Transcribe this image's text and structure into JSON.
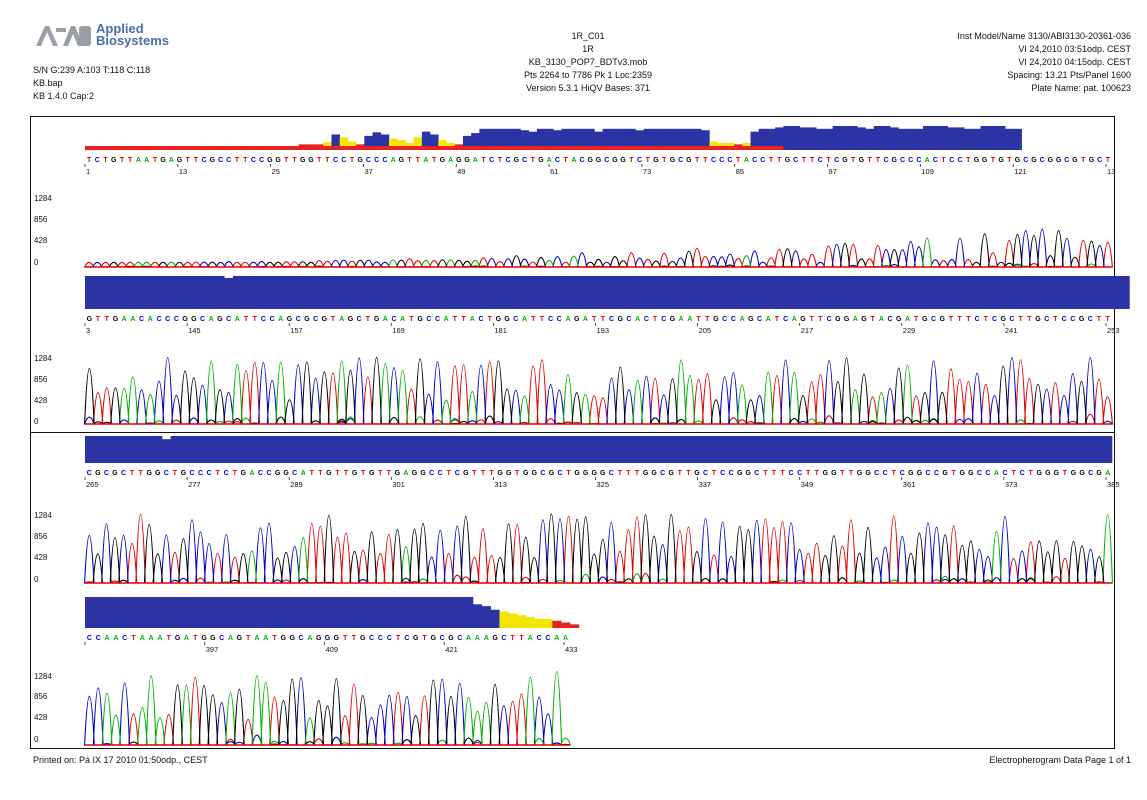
{
  "header": {
    "brand_line1": "Applied",
    "brand_line2": "Biosystems",
    "sample_line": "S/N G:239 A:103 T:118 C:118",
    "file_line": "KB.bap",
    "basecaller_line": "KB 1.4.0    Cap:2",
    "well": "1R_C01",
    "sample_name": "1R",
    "run_module": "KB_3130_POP7_BDTv3.mob",
    "points_line": "Pts 2264 to 7786 Pk 1 Loc:2359",
    "version_line": "Version 5.3.1    HiQV Bases: 371",
    "instrument_line": "Inst Model/Name 3130/ABI3130-20361-036",
    "date_line1": "VI 24,2010 03:51odp. CEST",
    "date_line2": "VI 24,2010 04:15odp. CEST",
    "spacing_line": "Spacing: 13.21  Pts/Panel 1600",
    "plate_line": "Plate Name: pat. 100623"
  },
  "footer": {
    "printed_on": "Printed on: Pá IX 17 2010 01:50odp., CEST",
    "page_label": "Electropherogram Data  Page 1 of 1"
  },
  "colors": {
    "A": "#00b000",
    "C": "#0000c8",
    "G": "#000000",
    "T": "#e00000",
    "qv_bar": "#2c33a5",
    "qv_mid": "#f2e600",
    "qv_low": "#e52323"
  },
  "chart_data": [
    {
      "type": "line",
      "panel": 1,
      "y_ticks": [
        "1284",
        "856",
        "428",
        "0"
      ],
      "tick_labels": [
        "1",
        "13",
        "25",
        "37",
        "49",
        "61",
        "73",
        "85",
        "97",
        "109",
        "121",
        "13"
      ],
      "seq": "TCTGTTAATGAGTTCGCCTTCCGGTTGGTTCCTGCCCAGTTATGAGGATCTCGCTGACTACGGCGGTCTGTGCGTTCCCTACCTTGCTTCTCGTGTTCGCCCACTCCTGGTGTGCGCGGCGTGCT",
      "qv": [
        2,
        2,
        2,
        2,
        2,
        2,
        2,
        2,
        3,
        3,
        3,
        3,
        5,
        5,
        5,
        5,
        5,
        5,
        5,
        5,
        5,
        5,
        5,
        5,
        5,
        5,
        8,
        8,
        8,
        11,
        22,
        18,
        12,
        8,
        20,
        25,
        22,
        16,
        14,
        10,
        18,
        26,
        22,
        14,
        10,
        8,
        20,
        24,
        30,
        30,
        30,
        30,
        30,
        28,
        26,
        30,
        30,
        28,
        30,
        30,
        30,
        30,
        26,
        30,
        30,
        30,
        30,
        28,
        30,
        30,
        30,
        30,
        30,
        30,
        30,
        28,
        12,
        10,
        10,
        8,
        10,
        26,
        30,
        30,
        32,
        34,
        34,
        32,
        32,
        30,
        30,
        34,
        34,
        34,
        32,
        30,
        34,
        34,
        32,
        30,
        30,
        30,
        34,
        34,
        34,
        32,
        32,
        30,
        30,
        34,
        34,
        34,
        30,
        30
      ]
    },
    {
      "type": "line",
      "panel": 2,
      "y_ticks": [
        "1284",
        "856",
        "428",
        "0"
      ],
      "tick_labels": [
        "3",
        "145",
        "157",
        "169",
        "181",
        "193",
        "205",
        "217",
        "229",
        "241",
        "253"
      ],
      "seq": "GTTGAACACCCGGCAGCATTCCAGCGCGTAGCTGACATGCCATTACTGGCATTCCAGATTCGCACTCGAATTGCCAGCATCAGTTCGGAGTACGATGCGTTTCTCGCTTGCTCCGCTT",
      "qv": [
        34,
        34,
        34,
        34,
        34,
        34,
        34,
        34,
        34,
        34,
        34,
        34,
        34,
        34,
        34,
        34,
        32,
        34,
        34,
        34,
        34,
        34,
        34,
        34,
        34,
        34,
        34,
        34,
        34,
        34,
        34,
        34,
        34,
        34,
        34,
        34,
        34,
        34,
        34,
        34,
        34,
        34,
        34,
        34,
        34,
        34,
        34,
        34,
        34,
        34,
        34,
        34,
        34,
        34,
        34,
        34,
        34,
        34,
        34,
        34,
        34,
        34,
        34,
        34,
        34,
        34,
        34,
        34,
        34,
        34,
        34,
        34,
        34,
        34,
        34,
        34,
        34,
        34,
        34,
        34,
        34,
        34,
        34,
        34,
        34,
        34,
        34,
        34,
        34,
        34,
        34,
        34,
        34,
        34,
        34,
        34,
        34,
        34,
        34,
        34,
        34,
        34,
        34,
        34,
        34,
        34,
        34,
        34,
        34,
        34,
        34,
        34,
        34,
        34,
        34,
        34,
        34,
        34,
        34,
        34
      ]
    },
    {
      "type": "line",
      "panel": 3,
      "y_ticks": [
        "1284",
        "856",
        "428",
        "0"
      ],
      "tick_labels": [
        "265",
        "277",
        "289",
        "301",
        "313",
        "325",
        "337",
        "349",
        "361",
        "373",
        "385"
      ],
      "seq": "CGCGCTTGGCTGCCCTCTGACCGGCATTGTTGTGTTGAGGCCTCGTTTGGTGGCGCTGGGGCTTTGGCGTTGCTCCGGCTTTCCTTGGTTGGCCTCGGCCGTGGCCACTCTGGGTGGCGA",
      "qv": [
        34,
        34,
        34,
        34,
        34,
        34,
        34,
        34,
        34,
        30,
        34,
        34,
        34,
        34,
        34,
        34,
        34,
        34,
        34,
        34,
        34,
        34,
        34,
        34,
        34,
        34,
        34,
        34,
        34,
        34,
        34,
        34,
        34,
        34,
        34,
        34,
        34,
        34,
        34,
        34,
        34,
        34,
        34,
        34,
        34,
        34,
        34,
        34,
        34,
        34,
        34,
        34,
        34,
        34,
        34,
        34,
        34,
        34,
        34,
        34,
        34,
        34,
        34,
        34,
        34,
        34,
        34,
        34,
        34,
        34,
        34,
        34,
        34,
        34,
        34,
        34,
        34,
        34,
        34,
        34,
        34,
        34,
        34,
        34,
        34,
        34,
        34,
        34,
        34,
        34,
        34,
        34,
        34,
        34,
        34,
        34,
        34,
        34,
        34,
        34,
        34,
        34,
        34,
        34,
        34,
        34,
        34,
        34,
        34,
        34,
        34,
        34,
        34,
        34,
        34,
        34,
        34,
        34,
        34,
        34
      ]
    },
    {
      "type": "line",
      "panel": 4,
      "y_ticks": [
        "1284",
        "856",
        "428",
        "0"
      ],
      "tick_labels": [
        "",
        "397",
        "409",
        "421",
        "433"
      ],
      "seq": "CCAACTAAATGATGGCAGTAATGGCAGGGTTGCCCTCGTGCGCAAAGCTTACCAA",
      "qv": [
        34,
        34,
        34,
        34,
        34,
        34,
        34,
        34,
        34,
        34,
        34,
        34,
        34,
        34,
        34,
        34,
        34,
        34,
        34,
        34,
        34,
        34,
        34,
        34,
        34,
        34,
        34,
        34,
        34,
        34,
        34,
        34,
        34,
        34,
        34,
        34,
        34,
        34,
        34,
        34,
        34,
        34,
        34,
        34,
        26,
        24,
        20,
        18,
        16,
        14,
        12,
        10,
        10,
        8,
        6,
        4
      ]
    }
  ]
}
